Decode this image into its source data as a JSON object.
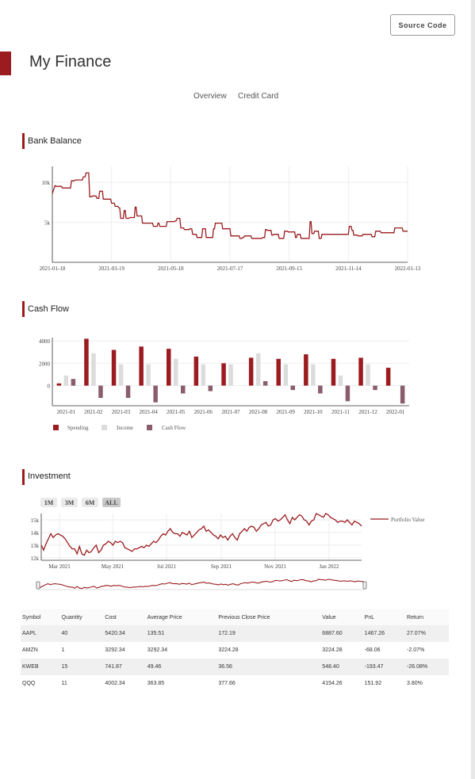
{
  "header": {
    "source_label": "Source Code",
    "title": "My Finance"
  },
  "nav": {
    "tabs": [
      {
        "label": "Overview"
      },
      {
        "label": "Credit Card"
      }
    ]
  },
  "sections": {
    "bank": "Bank Balance",
    "cashflow": "Cash Flow",
    "investment": "Investment"
  },
  "colors": {
    "accent": "#9b1b1f",
    "income": "#dcdcdc",
    "cashflow": "#8a5d6c"
  },
  "chart_data": [
    {
      "type": "line",
      "title": "Bank Balance",
      "x_ticks": [
        "2021-01-18",
        "2021-03-19",
        "2021-05-18",
        "2021-07-17",
        "2021-09-15",
        "2021-11-14",
        "2022-01-13"
      ],
      "y_ticks": [
        "5k",
        "10k"
      ],
      "ylim": [
        0,
        12000
      ],
      "grid": true,
      "x": [
        0,
        3,
        4,
        10,
        11,
        20,
        21,
        24,
        25,
        33,
        34,
        36,
        37,
        40,
        41,
        43,
        44,
        48,
        49,
        51,
        52,
        55,
        56,
        64,
        65,
        68,
        69,
        72,
        73,
        74,
        75,
        78,
        79,
        80,
        81,
        84,
        85,
        90,
        91,
        92,
        93,
        98,
        99,
        110,
        111,
        115,
        116,
        117,
        118,
        119,
        120,
        122,
        123,
        125,
        126,
        134,
        135,
        136,
        137,
        140,
        141,
        144,
        145,
        150,
        151,
        153,
        154,
        158,
        159,
        164,
        165,
        168,
        169,
        171,
        172,
        176,
        177,
        178,
        179,
        186,
        187,
        192,
        193,
        195,
        196,
        205,
        206,
        208,
        209,
        210,
        211,
        218,
        219,
        230,
        231,
        233,
        234,
        235,
        236,
        240,
        241,
        242,
        243,
        248,
        249,
        251,
        252,
        254,
        255,
        258,
        259,
        266,
        267,
        268,
        269,
        270,
        271,
        272,
        273,
        282,
        283,
        284,
        285,
        287,
        288,
        292,
        293,
        295,
        296,
        305,
        306,
        310,
        311,
        325,
        326,
        328,
        329,
        330,
        331,
        335,
        336,
        340,
        341,
        350,
        351,
        354,
        355,
        360,
        361,
        370,
        371,
        375,
        376,
        384,
        385,
        390
      ],
      "y": [
        8600,
        9600,
        9500,
        9500,
        9300,
        9300,
        10200,
        10200,
        10300,
        10300,
        10700,
        10700,
        11200,
        11200,
        8200,
        8200,
        8300,
        8300,
        8000,
        8000,
        8900,
        8900,
        7900,
        7900,
        7400,
        7400,
        7000,
        7000,
        6800,
        6800,
        5500,
        5500,
        6500,
        6500,
        5500,
        5500,
        5600,
        5600,
        6900,
        6900,
        5800,
        5800,
        4900,
        4900,
        4500,
        4500,
        4900,
        4900,
        4500,
        4500,
        4500,
        4500,
        4500,
        4500,
        5100,
        5100,
        5200,
        5200,
        5500,
        5500,
        4300,
        4300,
        4100,
        4100,
        4200,
        4200,
        3500,
        3500,
        3100,
        3100,
        4200,
        4200,
        3100,
        3100,
        3100,
        3100,
        4200,
        4200,
        4900,
        4900,
        4200,
        4200,
        4200,
        4200,
        3300,
        3300,
        3000,
        3000,
        3100,
        3100,
        3300,
        3300,
        3000,
        3000,
        3100,
        3100,
        4100,
        4100,
        4000,
        4000,
        3400,
        3400,
        3500,
        3500,
        3000,
        3000,
        3000,
        3000,
        3900,
        3900,
        3800,
        3800,
        3100,
        3100,
        3500,
        3500,
        3500,
        3500,
        3000,
        3000,
        5100,
        5100,
        3600,
        3600,
        3900,
        3900,
        3000,
        3000,
        3500,
        3500,
        3500,
        3500,
        3500,
        3500,
        4500,
        4500,
        4000,
        4000,
        3400,
        3400,
        3300,
        3300,
        3500,
        3500,
        3200,
        3200,
        3900,
        3900,
        3700,
        3700,
        3700,
        3700,
        4300,
        4300,
        3900,
        3900
      ]
    },
    {
      "type": "bar",
      "title": "Cash Flow",
      "categories": [
        "2021-01",
        "2021-02",
        "2021-03",
        "2021-04",
        "2021-05",
        "2021-06",
        "2021-07",
        "2021-08",
        "2021-09",
        "2021-10",
        "2021-11",
        "2021-12",
        "2022-01"
      ],
      "y_ticks": [
        0,
        2000,
        4000
      ],
      "ylim": [
        -1800,
        4300
      ],
      "grid": true,
      "legend_position": "bottom-left",
      "series": [
        {
          "name": "Spending",
          "color": "#9b1b1f",
          "values": [
            200,
            4200,
            3200,
            3500,
            3300,
            2600,
            2000,
            2500,
            2400,
            2800,
            2400,
            2500,
            1600
          ]
        },
        {
          "name": "Income",
          "color": "#dcdcdc",
          "values": [
            900,
            2900,
            1900,
            1900,
            2400,
            1900,
            1900,
            2900,
            1900,
            1900,
            900,
            1900,
            0
          ]
        },
        {
          "name": "Cash Flow",
          "color": "#8a5d6c",
          "values": [
            600,
            -1100,
            -1100,
            -1500,
            -700,
            -500,
            0,
            400,
            -400,
            -700,
            -1400,
            -400,
            -1600
          ]
        }
      ]
    },
    {
      "type": "line",
      "title": "Investment",
      "range_buttons": [
        "1M",
        "3M",
        "6M",
        "ALL"
      ],
      "active_range": "ALL",
      "x_ticks": [
        "Mar 2021",
        "May 2021",
        "Jul 2021",
        "Sep 2021",
        "Nov 2021",
        "Jan 2022"
      ],
      "y_ticks": [
        "12k",
        "13k",
        "14k",
        "15k"
      ],
      "ylim": [
        11800,
        15500
      ],
      "legend_position": "top-right",
      "series": [
        {
          "name": "Portfolio Value",
          "color": "#9b1b1f",
          "x": [
            0,
            3,
            6,
            9,
            12,
            15,
            18,
            21,
            24,
            27,
            30,
            33,
            36,
            39,
            42,
            45,
            48,
            51,
            54,
            57,
            60,
            63,
            66,
            69,
            72,
            75,
            78,
            81,
            84,
            87,
            90,
            93,
            96,
            99,
            102,
            105,
            108,
            111,
            114,
            117,
            120,
            123,
            126,
            129,
            132,
            135,
            138,
            141,
            144,
            147,
            150,
            153,
            156,
            159,
            162,
            165,
            168,
            171,
            174,
            177,
            180,
            183,
            186,
            189,
            192,
            195,
            198,
            201,
            204,
            207,
            210,
            213,
            216,
            219,
            222,
            225,
            228,
            231,
            234,
            237,
            240,
            243,
            246,
            249,
            252,
            255,
            258,
            261,
            264,
            267,
            270,
            273,
            276,
            279,
            282,
            285,
            288,
            291,
            294,
            297,
            300,
            303,
            306,
            309,
            312,
            315,
            318,
            321,
            324,
            327,
            330,
            333,
            336,
            339,
            342,
            345,
            348,
            351,
            354,
            357,
            360,
            363,
            366,
            369,
            372,
            375,
            378,
            381,
            384,
            387,
            390,
            393,
            396,
            399,
            402
          ],
          "values": [
            13000,
            12600,
            13100,
            13500,
            13900,
            13600,
            13800,
            13900,
            13800,
            13700,
            13500,
            13200,
            12900,
            12700,
            12700,
            12300,
            12900,
            12300,
            12200,
            12600,
            12400,
            12500,
            12800,
            13000,
            12400,
            12600,
            13000,
            13100,
            13300,
            13200,
            13000,
            13300,
            13200,
            13300,
            13200,
            12800,
            12700,
            12600,
            12500,
            12700,
            12700,
            12800,
            12900,
            12800,
            13000,
            12900,
            13100,
            13300,
            13200,
            13400,
            13700,
            13900,
            13800,
            14100,
            14300,
            14000,
            13900,
            13900,
            13700,
            14000,
            13900,
            13800,
            14100,
            13600,
            13800,
            14000,
            14200,
            14300,
            14500,
            14100,
            14200,
            14000,
            13800,
            13700,
            13500,
            13800,
            13600,
            13700,
            13400,
            13700,
            13900,
            13600,
            13400,
            13900,
            14100,
            14300,
            14100,
            14400,
            14500,
            14400,
            14100,
            14300,
            14600,
            14700,
            14800,
            14500,
            14600,
            15000,
            15100,
            14900,
            15000,
            15200,
            15400,
            15000,
            14700,
            15200,
            15000,
            15200,
            15400,
            15300,
            15000,
            14900,
            14600,
            14900,
            15000,
            15500,
            15400,
            15300,
            15200,
            15500,
            15400,
            15200,
            15100,
            15000,
            14800,
            14900,
            14900,
            14800,
            15000,
            14800,
            14600,
            14900,
            14800,
            14700,
            14500
          ]
        }
      ]
    }
  ],
  "table": {
    "headers": [
      "Symbol",
      "Quantity",
      "Cost",
      "Average Price",
      "Previous Close Price",
      "Value",
      "PnL",
      "Return"
    ],
    "rows": [
      [
        "AAPL",
        "40",
        "5420.34",
        "135.51",
        "172.19",
        "6887.60",
        "1467.26",
        "27.07%"
      ],
      [
        "AMZN",
        "1",
        "3292.34",
        "3292.34",
        "3224.28",
        "3224.28",
        "-68.06",
        "-2.07%"
      ],
      [
        "KWEB",
        "15",
        "741.87",
        "49.46",
        "36.56",
        "548.40",
        "-193.47",
        "-26.08%"
      ],
      [
        "QQQ",
        "11",
        "4002.34",
        "363.85",
        "377.66",
        "4154.26",
        "151.92",
        "3.80%"
      ]
    ]
  }
}
